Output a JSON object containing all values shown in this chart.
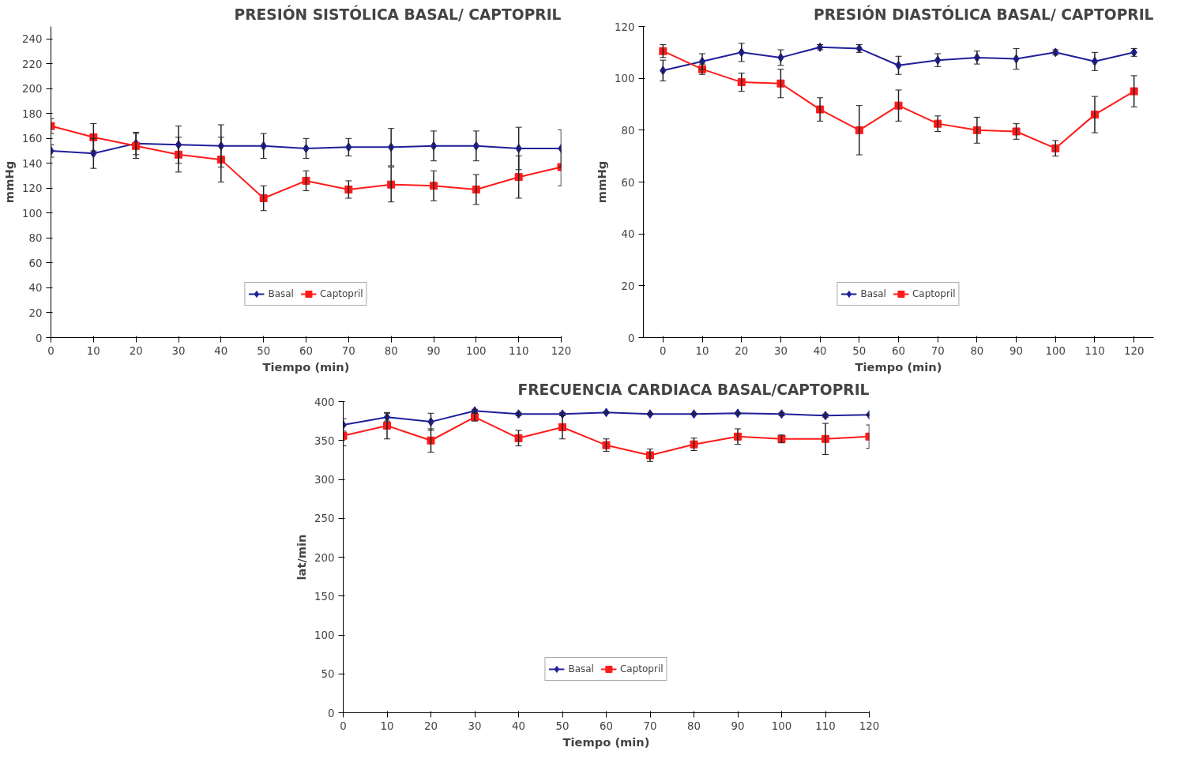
{
  "chart_data": [
    {
      "type": "line",
      "title": "PRESIÓN SISTÓLICA BASAL/ CAPTOPRIL",
      "xlabel": "Tiempo (min)",
      "ylabel": "mmHg",
      "x": [
        0,
        10,
        20,
        30,
        40,
        50,
        60,
        70,
        80,
        90,
        100,
        110,
        120
      ],
      "xlim": [
        0,
        120
      ],
      "xticks": [
        0,
        10,
        20,
        30,
        40,
        50,
        60,
        70,
        80,
        90,
        100,
        110,
        120
      ],
      "ylim": [
        0,
        250
      ],
      "yticks": [
        0,
        20,
        40,
        60,
        80,
        100,
        120,
        140,
        160,
        180,
        200,
        220,
        240
      ],
      "grid": false,
      "legend": "bottom",
      "series": [
        {
          "name": "Basal",
          "color": "#1f1f99",
          "marker": "diamond",
          "values": [
            150,
            148,
            156,
            155,
            154,
            154,
            152,
            153,
            153,
            154,
            154,
            152,
            152
          ],
          "errors": [
            5,
            12,
            9,
            15,
            17,
            10,
            8,
            7,
            15,
            12,
            12,
            17,
            15
          ]
        },
        {
          "name": "Captopril",
          "color": "#ff1a1a",
          "marker": "square",
          "values": [
            170,
            161,
            154,
            147,
            143,
            112,
            126,
            119,
            123,
            122,
            119,
            129,
            137
          ],
          "errors": [
            6,
            11,
            10,
            14,
            18,
            10,
            8,
            7,
            14,
            12,
            12,
            17,
            15
          ]
        }
      ]
    },
    {
      "type": "line",
      "title": "PRESIÓN DIASTÓLICA BASAL/ CAPTOPRIL",
      "xlabel": "Tiempo (min)",
      "ylabel": "mmHg",
      "categories": [
        "0",
        "10",
        "20",
        "30",
        "40",
        "50",
        "60",
        "70",
        "80",
        "90",
        "100",
        "110",
        "120"
      ],
      "ylim": [
        0,
        120
      ],
      "yticks": [
        0,
        20,
        40,
        60,
        80,
        100,
        120
      ],
      "grid": false,
      "legend": "bottom",
      "series": [
        {
          "name": "Basal",
          "color": "#1f1f99",
          "marker": "diamond",
          "values": [
            103,
            106.5,
            110,
            108,
            112,
            111.5,
            105,
            107,
            108,
            107.5,
            110,
            106.5,
            110
          ],
          "errors": [
            4,
            3,
            3.5,
            3,
            1,
            1.5,
            3.5,
            2.5,
            2.5,
            4,
            1,
            3.5,
            1.5
          ]
        },
        {
          "name": "Captopril",
          "color": "#ff1a1a",
          "marker": "square",
          "values": [
            110.5,
            103.5,
            98.5,
            98,
            88,
            80,
            89.5,
            82.5,
            80,
            79.5,
            73,
            86,
            95
          ],
          "errors": [
            2.5,
            2,
            3.5,
            5.5,
            4.5,
            9.5,
            6,
            3,
            5,
            3,
            3,
            7,
            6
          ]
        }
      ]
    },
    {
      "type": "line",
      "title": "FRECUENCIA CARDIACA BASAL/CAPTOPRIL",
      "xlabel": "Tiempo (min)",
      "ylabel": "lat/min",
      "x": [
        0,
        10,
        20,
        30,
        40,
        50,
        60,
        70,
        80,
        90,
        100,
        110,
        120
      ],
      "xlim": [
        0,
        120
      ],
      "xticks": [
        0,
        10,
        20,
        30,
        40,
        50,
        60,
        70,
        80,
        90,
        100,
        110,
        120
      ],
      "ylim": [
        0,
        400
      ],
      "yticks": [
        0,
        50,
        100,
        150,
        200,
        250,
        300,
        350,
        400
      ],
      "grid": false,
      "legend": "bottom",
      "series": [
        {
          "name": "Basal",
          "color": "#1f1f99",
          "marker": "diamond",
          "values": [
            370,
            380,
            374,
            388,
            384,
            384,
            386,
            384,
            384,
            385,
            384,
            382,
            383
          ],
          "errors": [
            8,
            5,
            11,
            2,
            2,
            2,
            1,
            1,
            1,
            1,
            2,
            2,
            1
          ]
        },
        {
          "name": "Captopril",
          "color": "#ff1a1a",
          "marker": "square",
          "values": [
            356,
            369,
            350,
            380,
            353,
            367,
            344,
            331,
            345,
            355,
            352,
            352,
            355
          ],
          "errors": [
            13,
            17,
            15,
            5,
            10,
            15,
            8,
            8,
            8,
            10,
            5,
            20,
            15
          ]
        }
      ]
    }
  ]
}
